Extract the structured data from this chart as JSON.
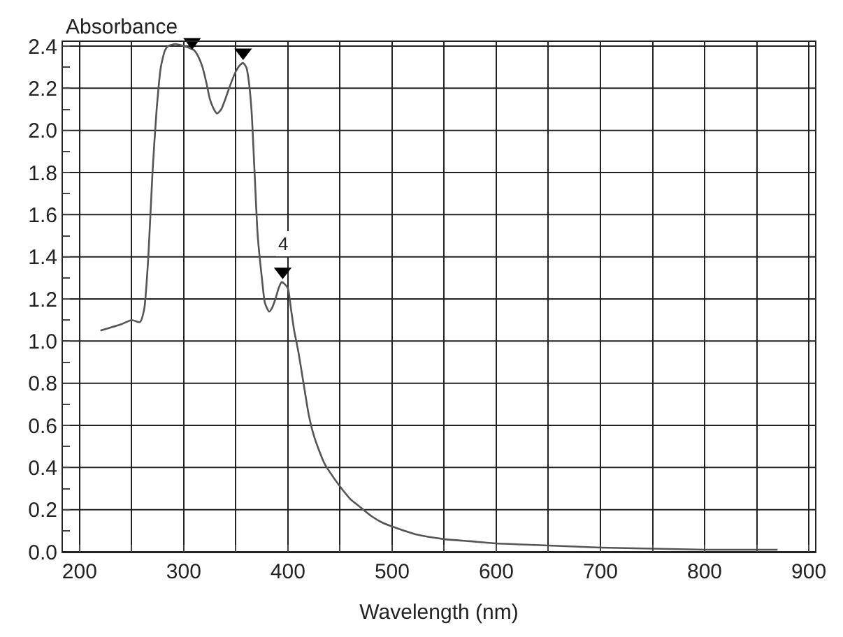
{
  "chart_data": {
    "type": "line",
    "xlabel": "Wavelength (nm)",
    "ylabel": "Absorbance",
    "xlim": [
      184,
      906
    ],
    "ylim": [
      0,
      2.42
    ],
    "xticks": [
      200,
      {
        "value": 250,
        "label": null
      },
      300,
      {
        "value": 350,
        "label": null
      },
      400,
      {
        "value": 450,
        "label": null
      },
      500,
      {
        "value": 550,
        "label": null
      },
      600,
      {
        "value": 650,
        "label": null
      },
      700,
      {
        "value": 750,
        "label": null
      },
      800,
      {
        "value": 850,
        "label": null
      },
      900
    ],
    "yticks": [
      "0.0",
      {
        "value": 0.1,
        "label": null
      },
      0.2,
      {
        "value": 0.3,
        "label": null
      },
      0.4,
      {
        "value": 0.5,
        "label": null
      },
      0.6,
      {
        "value": 0.7,
        "label": null
      },
      0.8,
      {
        "value": 0.9,
        "label": null
      },
      {
        "value": 1.0,
        "label": "1.0"
      },
      {
        "value": 1.1,
        "label": null
      },
      1.2,
      {
        "value": 1.3,
        "label": null
      },
      1.4,
      {
        "value": 1.5,
        "label": null
      },
      1.6,
      {
        "value": 1.7,
        "label": null
      },
      1.8,
      {
        "value": 1.9,
        "label": null
      },
      {
        "value": 2.0,
        "label": "2.0"
      },
      {
        "value": 2.1,
        "label": null
      },
      2.2,
      {
        "value": 2.3,
        "label": null
      },
      2.4
    ],
    "grid": true,
    "series": [
      {
        "color": "#555555",
        "marker": "none",
        "line_style": "solid",
        "x": [
          220,
          240,
          250,
          258,
          262,
          266,
          270,
          274,
          278,
          282,
          285,
          292,
          300,
          306,
          310,
          314,
          318,
          322,
          325,
          329,
          332,
          336,
          340,
          345,
          350,
          354,
          357,
          360,
          362,
          365,
          368,
          371,
          375,
          378,
          382,
          385,
          388,
          391,
          394,
          397,
          400,
          403,
          406,
          410,
          415,
          420,
          425,
          430,
          435,
          440,
          450,
          460,
          470,
          480,
          490,
          500,
          525,
          550,
          575,
          600,
          650,
          700,
          750,
          800,
          870
        ],
        "values": [
          1.05,
          1.08,
          1.1,
          1.09,
          1.15,
          1.4,
          1.8,
          2.1,
          2.3,
          2.38,
          2.4,
          2.41,
          2.4,
          2.39,
          2.38,
          2.35,
          2.3,
          2.22,
          2.15,
          2.1,
          2.08,
          2.1,
          2.15,
          2.22,
          2.28,
          2.31,
          2.32,
          2.3,
          2.25,
          2.1,
          1.8,
          1.5,
          1.3,
          1.18,
          1.14,
          1.16,
          1.2,
          1.25,
          1.28,
          1.27,
          1.25,
          1.15,
          1.05,
          0.95,
          0.8,
          0.65,
          0.55,
          0.48,
          0.42,
          0.38,
          0.31,
          0.25,
          0.21,
          0.17,
          0.14,
          0.12,
          0.08,
          0.06,
          0.05,
          0.04,
          0.03,
          0.02,
          0.015,
          0.01,
          0.01
        ]
      },
      {
        "type": "scatter",
        "color": "#000000",
        "marker": "triangle",
        "x": [
          308,
          357,
          395
        ],
        "values": [
          2.42,
          2.37,
          1.33
        ]
      }
    ],
    "annotations": [
      "4"
    ]
  }
}
